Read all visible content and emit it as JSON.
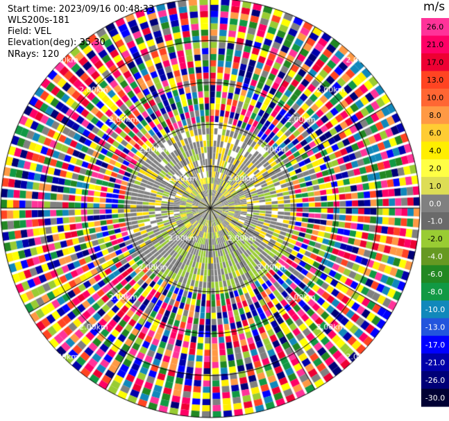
{
  "header": {
    "start_time": "Start time: 2023/09/16 00:48:33",
    "site": "WLS200s-181",
    "field": "Field: VEL",
    "elevation": "Elevation(deg): 35.30",
    "nrays": "NRays: 120"
  },
  "chart_data": {
    "type": "heatmap",
    "projection": "polar-ppi",
    "title": "",
    "rays": 120,
    "range_ring_label": "2.00km",
    "range_ring_count": 5,
    "unit": "m/s",
    "colorbar_ticks": [
      "26.0",
      "21.0",
      "17.0",
      "13.0",
      "10.0",
      "8.0",
      "6.0",
      "4.0",
      "2.0",
      "1.0",
      "0.0",
      "-1.0",
      "-2.0",
      "-4.0",
      "-6.0",
      "-8.0",
      "-10.0",
      "-13.0",
      "-17.0",
      "-21.0",
      "-26.0",
      "-30.0"
    ],
    "colorbar_colors": [
      "#ff3399",
      "#ff0066",
      "#ee0033",
      "#ff4422",
      "#ff6633",
      "#ff9944",
      "#ffcc33",
      "#ffee00",
      "#ffff44",
      "#dddd55",
      "#808080",
      "#6a6a6a",
      "#99cc33",
      "#669922",
      "#228822",
      "#119944",
      "#1188bb",
      "#2255dd",
      "#0000ff",
      "#0000aa",
      "#000077",
      "#000033"
    ],
    "near_field_colors": [
      "#808080",
      "#808080",
      "#808080",
      "#99cc33",
      "#ffdd00",
      "#ffff00",
      "#808080",
      "#99cc33"
    ],
    "noise_colors": [
      "#ff3399",
      "#ff0066",
      "#ee0033",
      "#ff4422",
      "#ff9944",
      "#ffee00",
      "#ffff00",
      "#99cc33",
      "#228822",
      "#119944",
      "#1188bb",
      "#0000ff",
      "#0000aa",
      "#000077",
      "#808080"
    ]
  }
}
